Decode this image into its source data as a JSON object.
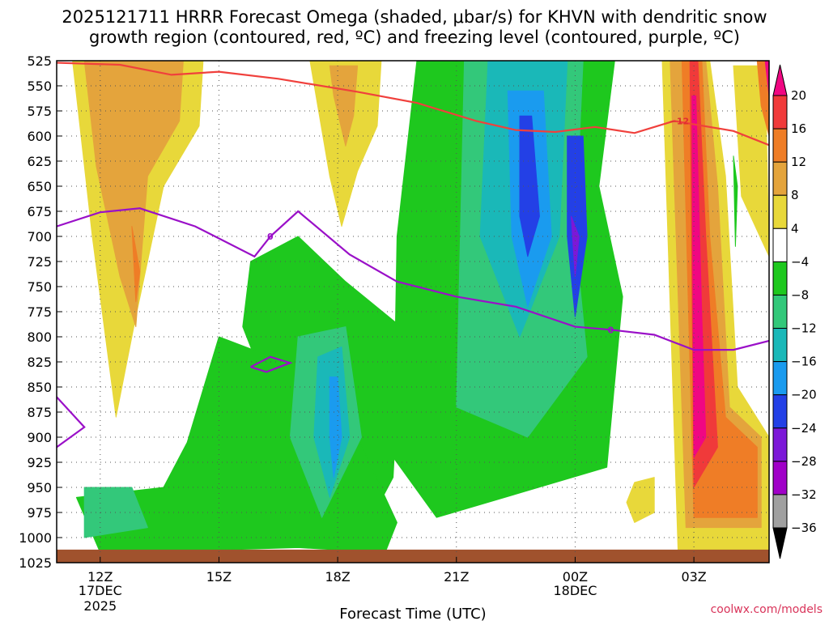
{
  "title_line1": "2025121711 HRRR Forecast Omega (shaded, μbar/s) for KHVN with dendritic snow",
  "title_line2": "growth region (contoured, red, ºC) and freezing level (contoured, purple, ºC)",
  "credit": "coolwx.com/models",
  "chart_data": {
    "type": "heatmap",
    "xlabel": "Forecast Time (UTC)",
    "ylabel": "",
    "x_range_hours": [
      10.9,
      28.9
    ],
    "y_range_mb": [
      525,
      1025
    ],
    "y_ticks": [
      525,
      550,
      575,
      600,
      625,
      650,
      675,
      700,
      725,
      750,
      775,
      800,
      825,
      850,
      875,
      900,
      925,
      950,
      975,
      1000,
      1025
    ],
    "x_ticks": [
      {
        "hour": 12,
        "label": "12Z",
        "sub1": "17DEC",
        "sub2": "2025"
      },
      {
        "hour": 15,
        "label": "15Z",
        "sub1": "",
        "sub2": ""
      },
      {
        "hour": 18,
        "label": "18Z",
        "sub1": "",
        "sub2": ""
      },
      {
        "hour": 21,
        "label": "21Z",
        "sub1": "",
        "sub2": ""
      },
      {
        "hour": 24,
        "label": "00Z",
        "sub1": "18DEC",
        "sub2": ""
      },
      {
        "hour": 27,
        "label": "03Z",
        "sub1": "",
        "sub2": ""
      }
    ],
    "grid": true,
    "colorbar": {
      "labels": [
        "20",
        "16",
        "12",
        "8",
        "4",
        "−4",
        "−8",
        "−12",
        "−16",
        "−20",
        "−24",
        "−28",
        "−32",
        "−36"
      ],
      "colors": [
        "#f00782",
        "#f03a3a",
        "#ef7d26",
        "#e4a43c",
        "#e8d83a",
        "#ffffff",
        "#1ec81e",
        "#33c87a",
        "#1ab8b8",
        "#1a9bef",
        "#2340e6",
        "#7c18d8",
        "#a000c8",
        "#a0a0a0",
        "#000000"
      ]
    },
    "omega_regions": [
      {
        "color": "#e8d83a",
        "t": [
          11.3,
          14.6,
          14.5,
          13.6,
          12.9,
          12.4,
          11.8,
          11.3
        ],
        "p": [
          525,
          525,
          590,
          650,
          780,
          880,
          700,
          525
        ]
      },
      {
        "color": "#e4a43c",
        "t": [
          11.6,
          14.1,
          14.0,
          13.2,
          12.9,
          12.5,
          11.9,
          11.6
        ],
        "p": [
          525,
          525,
          585,
          640,
          790,
          740,
          630,
          525
        ]
      },
      {
        "color": "#ef7d26",
        "t": [
          12.8,
          13.0,
          12.9
        ],
        "p": [
          690,
          735,
          765
        ]
      },
      {
        "color": "#e8d83a",
        "t": [
          17.3,
          19.1,
          19.0,
          18.5,
          18.1,
          17.8,
          17.3
        ],
        "p": [
          525,
          525,
          590,
          635,
          690,
          640,
          525
        ]
      },
      {
        "color": "#e4a43c",
        "t": [
          17.8,
          18.5,
          18.4,
          18.2,
          17.9,
          17.8
        ],
        "p": [
          530,
          530,
          580,
          610,
          560,
          530
        ]
      },
      {
        "color": "#1ec81e",
        "t": [
          20.0,
          25.0,
          24.6,
          25.2,
          24.8,
          20.5,
          19.4,
          19.5,
          20.0
        ],
        "p": [
          525,
          525,
          650,
          760,
          930,
          980,
          920,
          700,
          525
        ]
      },
      {
        "color": "#1ec81e",
        "t": [
          15.8,
          17.0,
          18.2,
          19.6,
          19.4,
          18.6,
          17.4,
          16.3,
          15.6,
          15.8
        ],
        "p": [
          725,
          700,
          745,
          790,
          940,
          1000,
          990,
          860,
          790,
          725
        ]
      },
      {
        "color": "#1ec81e",
        "t": [
          11.4,
          13.6,
          14.2,
          15.0,
          17.0,
          18.5,
          19.5,
          19.2,
          17.0,
          14.5,
          12.0,
          11.4
        ],
        "p": [
          960,
          950,
          905,
          800,
          830,
          900,
          985,
          1015,
          1010,
          1013,
          1015,
          960
        ]
      },
      {
        "color": "#33c87a",
        "t": [
          21.2,
          24.2,
          24.0,
          24.3,
          22.8,
          21.0,
          21.2
        ],
        "p": [
          525,
          525,
          700,
          820,
          900,
          870,
          525
        ]
      },
      {
        "color": "#1ab8b8",
        "t": [
          21.8,
          23.8,
          23.6,
          22.6,
          21.6,
          21.8
        ],
        "p": [
          525,
          525,
          700,
          800,
          700,
          525
        ]
      },
      {
        "color": "#1a9bef",
        "t": [
          22.3,
          23.2,
          23.4,
          22.8,
          22.4,
          22.3
        ],
        "p": [
          555,
          555,
          700,
          770,
          700,
          555
        ]
      },
      {
        "color": "#2340e6",
        "t": [
          22.6,
          22.9,
          23.1,
          22.8,
          22.6
        ],
        "p": [
          580,
          580,
          680,
          720,
          680
        ]
      },
      {
        "color": "#2340e6",
        "t": [
          23.8,
          24.2,
          24.3,
          24.0,
          23.8
        ],
        "p": [
          600,
          600,
          700,
          780,
          700
        ]
      },
      {
        "color": "#7c18d8",
        "t": [
          23.9,
          24.1,
          24.0
        ],
        "p": [
          680,
          700,
          740
        ]
      },
      {
        "color": "#33c87a",
        "t": [
          17.0,
          18.2,
          18.6,
          17.6,
          16.8,
          17.0
        ],
        "p": [
          800,
          790,
          900,
          980,
          900,
          800
        ]
      },
      {
        "color": "#1ab8b8",
        "t": [
          17.5,
          18.1,
          18.3,
          17.8,
          17.4,
          17.5
        ],
        "p": [
          820,
          810,
          900,
          960,
          900,
          820
        ]
      },
      {
        "color": "#1a9bef",
        "t": [
          17.8,
          18.0,
          18.1,
          17.9,
          17.8
        ],
        "p": [
          840,
          840,
          900,
          940,
          900
        ]
      },
      {
        "color": "#33c87a",
        "t": [
          11.6,
          12.8,
          13.2,
          11.6
        ],
        "p": [
          950,
          950,
          990,
          1000
        ]
      },
      {
        "color": "#e8d83a",
        "t": [
          26.2,
          27.4,
          27.8,
          28.1,
          28.9,
          28.9,
          26.6,
          26.2
        ],
        "p": [
          525,
          525,
          640,
          850,
          900,
          1015,
          1015,
          525
        ]
      },
      {
        "color": "#e4a43c",
        "t": [
          26.4,
          27.3,
          27.6,
          27.9,
          28.7,
          28.7,
          26.8,
          26.4
        ],
        "p": [
          525,
          525,
          650,
          870,
          900,
          990,
          990,
          525
        ]
      },
      {
        "color": "#ef7d26",
        "t": [
          26.7,
          27.2,
          27.4,
          27.8,
          28.6,
          28.6,
          27.0,
          26.7
        ],
        "p": [
          525,
          525,
          700,
          880,
          910,
          980,
          980,
          525
        ]
      },
      {
        "color": "#f03a3a",
        "t": [
          26.9,
          27.1,
          27.3,
          27.6,
          27.0,
          26.9
        ],
        "p": [
          525,
          525,
          700,
          910,
          950,
          525
        ]
      },
      {
        "color": "#f00782",
        "t": [
          26.95,
          27.05,
          27.2,
          27.3,
          27.0,
          26.95
        ],
        "p": [
          560,
          560,
          780,
          900,
          920,
          560
        ]
      },
      {
        "color": "#e8d83a",
        "t": [
          28.0,
          28.8,
          28.9,
          28.2,
          28.0
        ],
        "p": [
          530,
          530,
          720,
          660,
          530
        ]
      },
      {
        "color": "#ef7d26",
        "t": [
          28.6,
          28.9,
          28.9,
          28.7
        ],
        "p": [
          525,
          525,
          600,
          570
        ]
      },
      {
        "color": "#f00782",
        "t": [
          28.8,
          28.9,
          28.9
        ],
        "p": [
          525,
          525,
          560
        ]
      },
      {
        "color": "#e8d83a",
        "t": [
          25.5,
          26.0,
          26.0,
          25.5,
          25.3,
          25.5
        ],
        "p": [
          945,
          940,
          975,
          985,
          965,
          945
        ]
      },
      {
        "color": "#1ec81e",
        "t": [
          28.0,
          28.1,
          28.05
        ],
        "p": [
          620,
          650,
          710
        ]
      }
    ],
    "dgz_contour": {
      "label": "−12",
      "t": [
        10.9,
        12.5,
        13.8,
        15.0,
        16.5,
        18.5,
        20.0,
        21.5,
        22.5,
        23.5,
        24.5,
        25.5,
        26.5,
        28.0,
        28.9
      ],
      "p": [
        527,
        529,
        539,
        536,
        543,
        556,
        567,
        585,
        594,
        596,
        591,
        597,
        585,
        595,
        609
      ]
    },
    "freezing_level": {
      "label": "0",
      "t": [
        10.9,
        12.0,
        13.0,
        14.4,
        15.9,
        16.3,
        17.0,
        18.3,
        19.5,
        21.0,
        22.5,
        24.0,
        24.9,
        26.0,
        27.0,
        28.0,
        28.9
      ],
      "p": [
        690,
        676,
        672,
        690,
        720,
        700,
        675,
        718,
        745,
        760,
        770,
        790,
        793,
        798,
        813,
        813,
        804
      ]
    },
    "freezing_level_extra": [
      {
        "t": [
          10.9,
          11.6,
          10.9
        ],
        "p": [
          860,
          890,
          910
        ]
      },
      {
        "t": [
          15.8,
          16.3,
          16.8,
          16.2,
          15.8
        ],
        "p": [
          830,
          820,
          826,
          835,
          830
        ]
      }
    ],
    "terrain_mb": 1012
  }
}
